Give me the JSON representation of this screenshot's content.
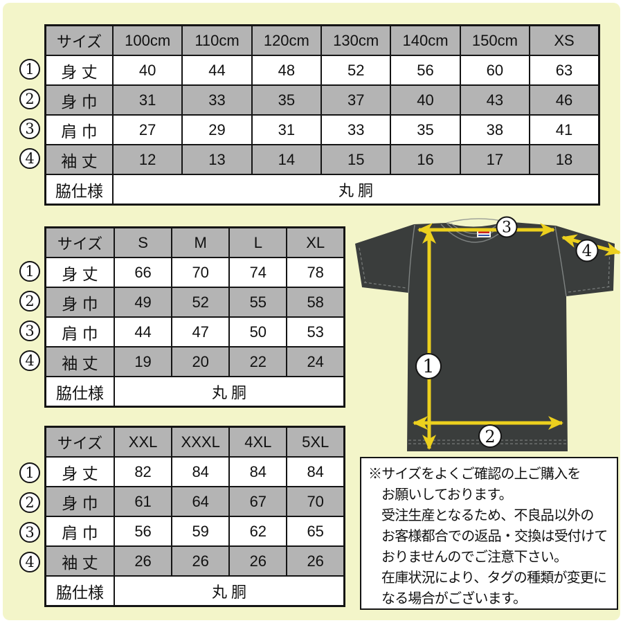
{
  "page": {
    "background": "#f3f5c9",
    "table_gray": "#b4b4b4",
    "arrow_yellow": "#ecd01e",
    "shirt_color": "#3a3d3c"
  },
  "size_tables": [
    {
      "name": "kids-and-xs",
      "columns": [
        "サイズ",
        "100cm",
        "110cm",
        "120cm",
        "130cm",
        "140cm",
        "150cm",
        "XS"
      ],
      "rows": [
        {
          "marker": "1",
          "label": "身 丈",
          "values": [
            "40",
            "44",
            "48",
            "52",
            "56",
            "60",
            "63"
          ]
        },
        {
          "marker": "2",
          "label": "身 巾",
          "values": [
            "31",
            "33",
            "35",
            "37",
            "40",
            "43",
            "46"
          ]
        },
        {
          "marker": "3",
          "label": "肩 巾",
          "values": [
            "27",
            "29",
            "31",
            "33",
            "35",
            "38",
            "41"
          ]
        },
        {
          "marker": "4",
          "label": "袖 丈",
          "values": [
            "12",
            "13",
            "14",
            "15",
            "16",
            "17",
            "18"
          ]
        }
      ],
      "footer": {
        "label": "脇仕様",
        "value": "丸 胴"
      }
    },
    {
      "name": "s-to-xl",
      "columns": [
        "サイズ",
        "S",
        "M",
        "L",
        "XL"
      ],
      "rows": [
        {
          "marker": "1",
          "label": "身 丈",
          "values": [
            "66",
            "70",
            "74",
            "78"
          ]
        },
        {
          "marker": "2",
          "label": "身 巾",
          "values": [
            "49",
            "52",
            "55",
            "58"
          ]
        },
        {
          "marker": "3",
          "label": "肩 巾",
          "values": [
            "44",
            "47",
            "50",
            "53"
          ]
        },
        {
          "marker": "4",
          "label": "袖 丈",
          "values": [
            "19",
            "20",
            "22",
            "24"
          ]
        }
      ],
      "footer": {
        "label": "脇仕様",
        "value": "丸 胴"
      }
    },
    {
      "name": "xxl-to-5xl",
      "columns": [
        "サイズ",
        "XXL",
        "XXXL",
        "4XL",
        "5XL"
      ],
      "rows": [
        {
          "marker": "1",
          "label": "身 丈",
          "values": [
            "82",
            "84",
            "84",
            "84"
          ]
        },
        {
          "marker": "2",
          "label": "身 巾",
          "values": [
            "61",
            "64",
            "67",
            "70"
          ]
        },
        {
          "marker": "3",
          "label": "肩 巾",
          "values": [
            "56",
            "59",
            "62",
            "65"
          ]
        },
        {
          "marker": "4",
          "label": "袖 丈",
          "values": [
            "26",
            "26",
            "26",
            "26"
          ]
        }
      ],
      "footer": {
        "label": "脇仕様",
        "value": "丸 胴"
      }
    }
  ],
  "diagram": {
    "garment": "t-shirt",
    "markers": [
      {
        "id": "1",
        "measure": "身丈"
      },
      {
        "id": "2",
        "measure": "身巾"
      },
      {
        "id": "3",
        "measure": "肩巾"
      },
      {
        "id": "4",
        "measure": "袖丈"
      }
    ]
  },
  "notice": {
    "lines": [
      "※サイズをよくご確認の上ご購入を",
      "お願いしております。",
      "受注生産となるため、不良品以外の",
      "お客様都合での返品・交換は受付けて",
      "おりませんのでご注意下さい。",
      "在庫状況により、タグの種類が変更に",
      "なる場合がございます。"
    ]
  }
}
